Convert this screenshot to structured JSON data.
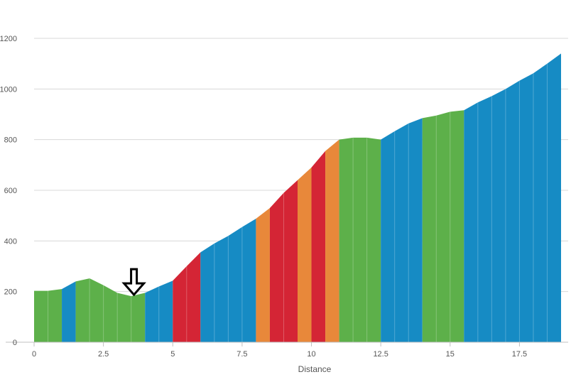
{
  "chart_data": {
    "type": "area",
    "title": "",
    "xlabel": "Distance",
    "ylabel": "",
    "xlim": [
      0,
      19
    ],
    "ylim": [
      0,
      1200
    ],
    "x_ticks": [
      0,
      2.5,
      5,
      7.5,
      10,
      12.5,
      15,
      17.5
    ],
    "x_tick_labels": [
      "0",
      "2.5",
      "5",
      "7.5",
      "10",
      "12.5",
      "15",
      "17.5"
    ],
    "y_ticks": [
      0,
      200,
      400,
      600,
      800,
      1000,
      1200
    ],
    "y_tick_labels": [
      "0",
      "200",
      "400",
      "600",
      "800",
      "1000",
      "1200"
    ],
    "grid": "horizontal",
    "legend": "none",
    "colors": {
      "gentle": "#5DB04A",
      "moderate": "#168BC4",
      "steep": "#E8883A",
      "very_steep": "#D42535"
    },
    "series": [
      {
        "x": [
          0,
          0.5,
          1
        ],
        "y": [
          203,
          203,
          210
        ],
        "color_key": "gentle"
      },
      {
        "x": [
          1,
          1.5
        ],
        "y": [
          210,
          240
        ],
        "color_key": "moderate"
      },
      {
        "x": [
          1.5,
          2,
          2.5,
          3,
          3.5,
          4
        ],
        "y": [
          240,
          252,
          225,
          195,
          182,
          195
        ],
        "color_key": "gentle"
      },
      {
        "x": [
          4,
          4.5,
          5
        ],
        "y": [
          195,
          220,
          243
        ],
        "color_key": "moderate"
      },
      {
        "x": [
          5,
          5.5,
          6
        ],
        "y": [
          243,
          300,
          355
        ],
        "color_key": "very_steep"
      },
      {
        "x": [
          6,
          6.5,
          7,
          7.5,
          8
        ],
        "y": [
          355,
          390,
          420,
          455,
          488
        ],
        "color_key": "moderate"
      },
      {
        "x": [
          8,
          8.5
        ],
        "y": [
          488,
          530
        ],
        "color_key": "steep"
      },
      {
        "x": [
          8.5,
          9,
          9.5
        ],
        "y": [
          530,
          590,
          640
        ],
        "color_key": "very_steep"
      },
      {
        "x": [
          9.5,
          10
        ],
        "y": [
          640,
          690
        ],
        "color_key": "steep"
      },
      {
        "x": [
          10,
          10.5
        ],
        "y": [
          690,
          755
        ],
        "color_key": "very_steep"
      },
      {
        "x": [
          10.5,
          11
        ],
        "y": [
          755,
          800
        ],
        "color_key": "steep"
      },
      {
        "x": [
          11,
          11.5,
          12,
          12.5
        ],
        "y": [
          800,
          808,
          808,
          800
        ],
        "color_key": "gentle"
      },
      {
        "x": [
          12.5,
          13,
          13.5,
          14
        ],
        "y": [
          800,
          833,
          864,
          885
        ],
        "color_key": "moderate"
      },
      {
        "x": [
          14,
          14.5,
          15,
          15.5
        ],
        "y": [
          885,
          895,
          910,
          916
        ],
        "color_key": "gentle"
      },
      {
        "x": [
          15.5,
          16,
          16.5,
          17,
          17.5,
          18,
          18.5,
          19
        ],
        "y": [
          916,
          947,
          972,
          1000,
          1033,
          1062,
          1100,
          1140
        ],
        "color_key": "moderate"
      }
    ],
    "annotation": {
      "type": "down-arrow",
      "x": 3.6,
      "y": 182
    }
  }
}
